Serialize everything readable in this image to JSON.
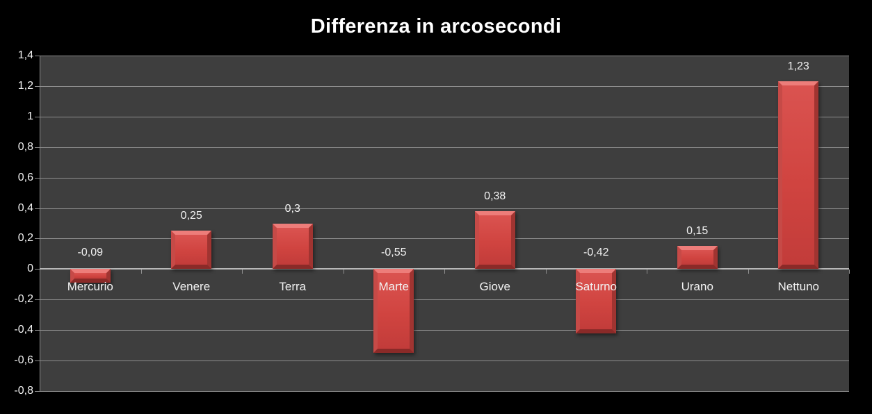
{
  "title": "Differenza in arcosecondi",
  "chart_data": {
    "type": "bar",
    "title": "Differenza in arcosecondi",
    "categories": [
      "Mercurio",
      "Venere",
      "Terra",
      "Marte",
      "Giove",
      "Saturno",
      "Urano",
      "Nettuno"
    ],
    "values": [
      -0.09,
      0.25,
      0.3,
      -0.55,
      0.38,
      -0.42,
      0.15,
      1.23
    ],
    "value_labels": [
      "-0,09",
      "0,25",
      "0,3",
      "-0,55",
      "0,38",
      "-0,42",
      "0,15",
      "1,23"
    ],
    "y_tick_labels": [
      "1,4",
      "1,2",
      "1",
      "0,8",
      "0,6",
      "0,4",
      "0,2",
      "0",
      "-0,2",
      "-0,4",
      "-0,6",
      "-0,8"
    ],
    "ylim": [
      -0.8,
      1.4
    ],
    "y_step": 0.2,
    "xlabel": "",
    "ylabel": "",
    "grid": true,
    "legend": false,
    "decimal_separator": ",",
    "bar_color": "#d04440",
    "page_bg": "#000000",
    "plot_bg": "#3e3e3e",
    "gridline_color": "#8f8f8f",
    "text_color": "#f2f2f2",
    "title_color": "#ffffff"
  }
}
